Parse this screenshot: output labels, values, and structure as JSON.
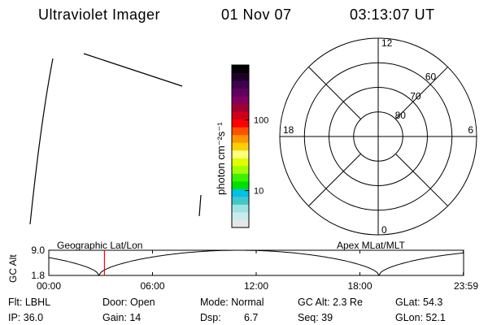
{
  "header": {
    "instrument": "Ultraviolet Imager",
    "date": "01 Nov 07",
    "time": "03:13:07 UT"
  },
  "colorbar": {
    "label": "photon cm⁻²s⁻¹",
    "ticks": [
      {
        "value": 100,
        "label": "100"
      },
      {
        "value": 10,
        "label": "10"
      }
    ],
    "range": [
      3,
      600
    ],
    "colors": [
      "#e6e6e6",
      "#c8ecec",
      "#a0e2e2",
      "#40c8c8",
      "#00c0e8",
      "#00e000",
      "#40f000",
      "#a0ff00",
      "#e0ff00",
      "#ffff80",
      "#ffd000",
      "#ff9600",
      "#ff5000",
      "#ff0000",
      "#d00018",
      "#a00030",
      "#800060",
      "#600060",
      "#400050",
      "#200028",
      "#000000"
    ]
  },
  "polar": {
    "mlt_labels": [
      {
        "mlt": 12,
        "label": "12"
      },
      {
        "mlt": 18,
        "label": "18"
      },
      {
        "mlt": 6,
        "label": "6"
      },
      {
        "mlt": 0,
        "label": "0"
      }
    ],
    "lat_labels": [
      {
        "lat": 60,
        "label": "60"
      },
      {
        "lat": 70,
        "label": "70"
      },
      {
        "lat": 80,
        "label": "80"
      }
    ]
  },
  "timeline": {
    "left_title": "Geographic Lat/Lon",
    "right_title": "Apex MLat/MLT",
    "y_axis_label": "GC Alt",
    "y_ticks": [
      {
        "value": 9.0,
        "label": "9.0"
      },
      {
        "value": 1.8,
        "label": "1.8"
      }
    ],
    "x_ticks": [
      {
        "hour": 0,
        "label": "00:00"
      },
      {
        "hour": 6,
        "label": "06:00"
      },
      {
        "hour": 12,
        "label": "12:00"
      },
      {
        "hour": 18,
        "label": "18:00"
      },
      {
        "hour": 23.983,
        "label": "23:59"
      }
    ],
    "current_hour": 3.22,
    "marker_color": "#ff0000"
  },
  "info": {
    "flt": "Flt: LBHL",
    "door": "Door: Open",
    "mode": "Mode: Normal",
    "gc_alt": "GC Alt: 2.3 Re",
    "glat": "GLat:  54.3",
    "ip": "IP: 36.0",
    "gain": "Gain: 14",
    "dsp_label": "Dsp:",
    "dsp_value": "6.7",
    "seq": "Seq: 39",
    "glon": "GLon:  52.1"
  }
}
